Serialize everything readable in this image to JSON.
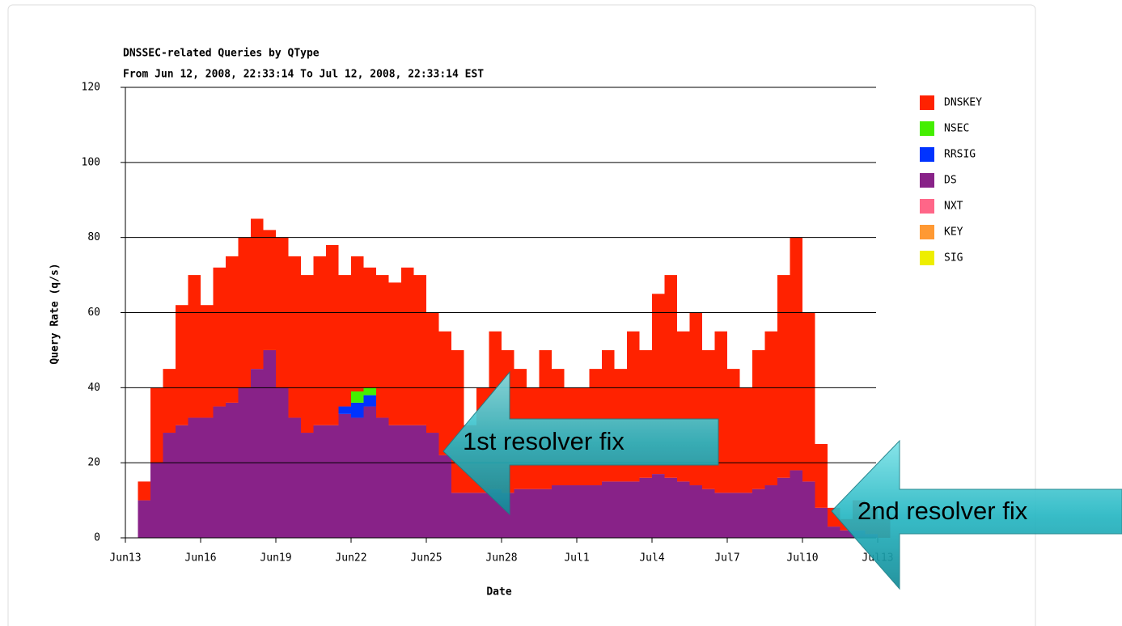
{
  "chart_data": {
    "type": "stacked-bar",
    "title": "DNSSEC-related Queries by QType",
    "subtitle": "From Jun 12, 2008, 22:33:14 To Jul 12, 2008, 22:33:14 EST",
    "y_label": "Query Rate (q/s)",
    "x_label": "Date",
    "annotations": [
      "1st resolver fix",
      "2nd resolver fix"
    ],
    "categories": [
      "Jun13",
      null,
      null,
      null,
      null,
      null,
      "Jun16",
      null,
      null,
      null,
      null,
      null,
      "Jun19",
      null,
      null,
      null,
      null,
      null,
      "Jun22",
      null,
      null,
      null,
      null,
      null,
      "Jun25",
      null,
      null,
      null,
      null,
      null,
      "Jun28",
      null,
      null,
      null,
      null,
      null,
      "Jul1",
      null,
      null,
      null,
      null,
      null,
      "Jul4",
      null,
      null,
      null,
      null,
      null,
      "Jul7",
      null,
      null,
      null,
      null,
      null,
      "Jul10",
      null,
      null,
      null,
      null,
      null,
      "Jul13"
    ],
    "series": [
      {
        "name": "DNSKEY",
        "color": "#ff2200",
        "values": [
          0,
          5,
          20,
          17,
          32,
          38,
          30,
          37,
          39,
          40,
          40,
          32,
          40,
          43,
          42,
          45,
          48,
          35,
          36,
          32,
          38,
          38,
          42,
          40,
          32,
          33,
          38,
          18,
          28,
          42,
          38,
          32,
          27,
          37,
          31,
          26,
          26,
          31,
          35,
          30,
          40,
          34,
          48,
          54,
          40,
          46,
          37,
          43,
          33,
          28,
          37,
          41,
          54,
          62,
          45,
          17,
          5,
          3,
          8,
          7,
          5
        ]
      },
      {
        "name": "NSEC",
        "color": "#44ee00",
        "values": [
          0,
          0,
          0,
          0,
          0,
          0,
          0,
          0,
          0,
          0,
          0,
          0,
          0,
          0,
          0,
          0,
          0,
          0,
          3,
          2,
          0,
          0,
          0,
          0,
          0,
          0,
          0,
          0,
          0,
          0,
          0,
          0,
          0,
          0,
          0,
          0,
          0,
          0,
          0,
          0,
          0,
          0,
          0,
          0,
          0,
          0,
          0,
          0,
          0,
          0,
          0,
          0,
          0,
          0,
          0,
          0,
          0,
          0,
          0,
          0,
          0
        ]
      },
      {
        "name": "RRSIG",
        "color": "#0033ff",
        "values": [
          0,
          0,
          0,
          0,
          0,
          0,
          0,
          0,
          0,
          0,
          0,
          0,
          0,
          0,
          0,
          0,
          0,
          2,
          4,
          3,
          0,
          0,
          0,
          0,
          0,
          0,
          0,
          0,
          0,
          0,
          0,
          0,
          0,
          0,
          0,
          0,
          0,
          0,
          0,
          0,
          0,
          0,
          0,
          0,
          0,
          0,
          0,
          0,
          0,
          0,
          0,
          0,
          0,
          0,
          0,
          0,
          0,
          0,
          0,
          0,
          0
        ]
      },
      {
        "name": "DS",
        "color": "#882288",
        "values": [
          0,
          10,
          20,
          28,
          30,
          32,
          32,
          35,
          36,
          40,
          45,
          50,
          40,
          32,
          28,
          30,
          30,
          33,
          32,
          35,
          32,
          30,
          30,
          30,
          28,
          22,
          12,
          12,
          12,
          13,
          12,
          13,
          13,
          13,
          14,
          14,
          14,
          14,
          15,
          15,
          15,
          16,
          17,
          16,
          15,
          14,
          13,
          12,
          12,
          12,
          13,
          14,
          16,
          18,
          15,
          8,
          3,
          2,
          2,
          1,
          0
        ]
      },
      {
        "name": "NXT",
        "color": "#ff6688",
        "values": [
          0,
          0,
          0,
          0,
          0,
          0,
          0,
          0,
          0,
          0,
          0,
          0,
          0,
          0,
          0,
          0,
          0,
          0,
          0,
          0,
          0,
          0,
          0,
          0,
          0,
          0,
          0,
          0,
          0,
          0,
          0,
          0,
          0,
          0,
          0,
          0,
          0,
          0,
          0,
          0,
          0,
          0,
          0,
          0,
          0,
          0,
          0,
          0,
          0,
          0,
          0,
          0,
          0,
          0,
          0,
          0,
          0,
          0,
          0,
          0,
          0
        ]
      },
      {
        "name": "KEY",
        "color": "#ff9933",
        "values": [
          0,
          0,
          0,
          0,
          0,
          0,
          0,
          0,
          0,
          0,
          0,
          0,
          0,
          0,
          0,
          0,
          0,
          0,
          0,
          0,
          0,
          0,
          0,
          0,
          0,
          0,
          0,
          0,
          0,
          0,
          0,
          0,
          0,
          0,
          0,
          0,
          0,
          0,
          0,
          0,
          0,
          0,
          0,
          0,
          0,
          0,
          0,
          0,
          0,
          0,
          0,
          0,
          0,
          0,
          0,
          0,
          0,
          0,
          0,
          0,
          0
        ]
      },
      {
        "name": "SIG",
        "color": "#eeee00",
        "values": [
          0,
          0,
          0,
          0,
          0,
          0,
          0,
          0,
          0,
          0,
          0,
          0,
          0,
          0,
          0,
          0,
          0,
          0,
          0,
          0,
          0,
          0,
          0,
          0,
          0,
          0,
          0,
          0,
          0,
          0,
          0,
          0,
          0,
          0,
          0,
          0,
          0,
          0,
          0,
          0,
          0,
          0,
          0,
          0,
          0,
          0,
          0,
          0,
          0,
          0,
          0,
          0,
          0,
          0,
          0,
          0,
          0,
          0,
          0,
          0,
          0
        ]
      }
    ],
    "ylim": [
      0,
      120
    ],
    "yticks": [
      0,
      20,
      40,
      60,
      80,
      100,
      120
    ],
    "grid": true,
    "legend": "right"
  }
}
